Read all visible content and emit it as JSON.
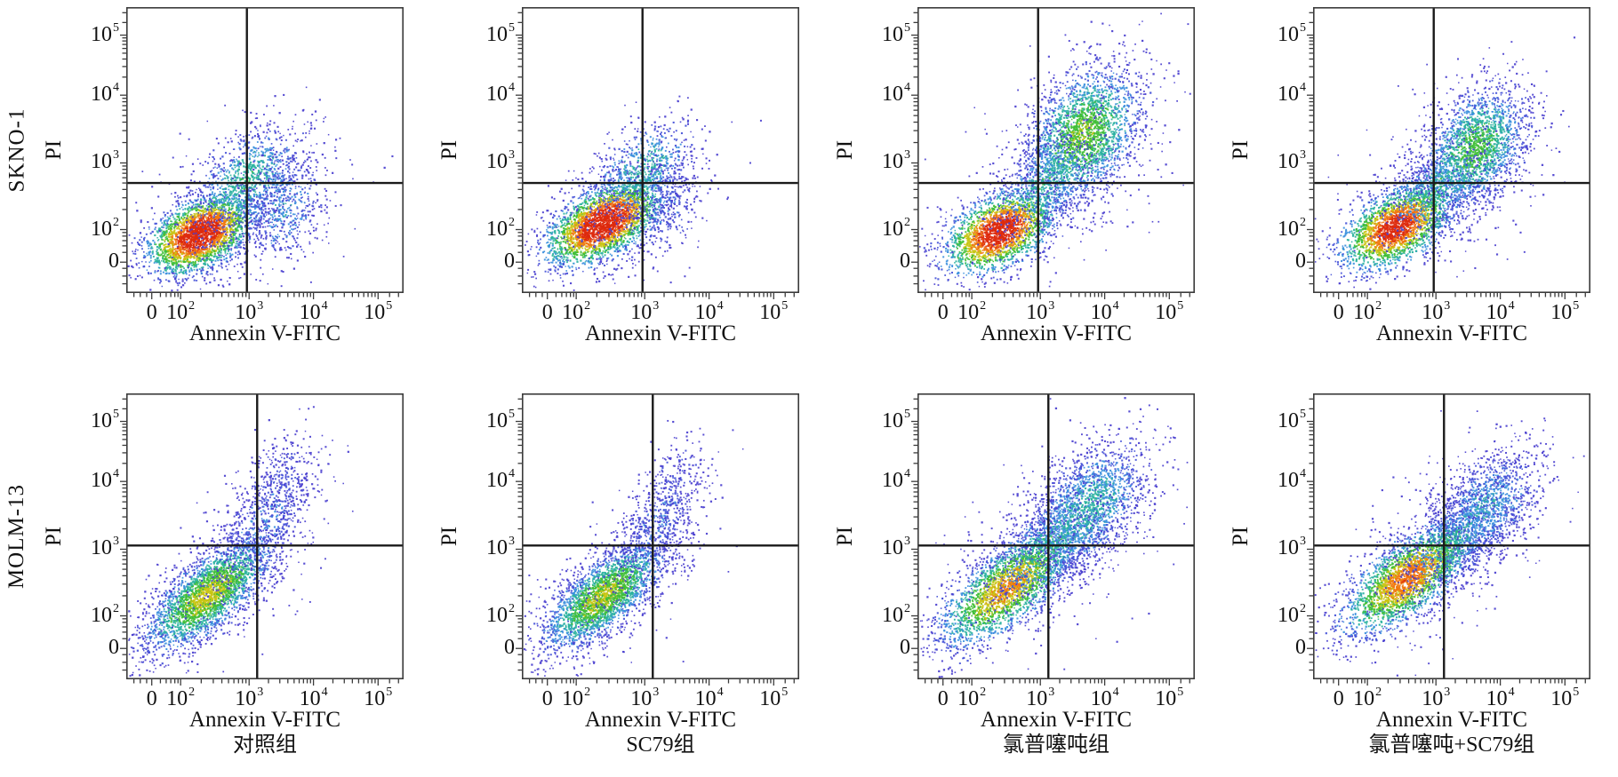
{
  "figure": {
    "kind": "flow cytometry apoptosis density dot plots",
    "background_color": "#ffffff",
    "axis_color": "#3b3b3b",
    "gate_line_color": "#1a1a1a",
    "text_color": "#111111"
  },
  "chart_data": {
    "type": "scatter",
    "description": "Annexin V-FITC / PI flow cytometry density plots, 2 cell lines x 4 treatment groups, with quadrant gates",
    "grid": "off",
    "legend": "none",
    "point_size": 1.7,
    "x_axis": {
      "label": "Annexin V-FITC",
      "scale": "biexponential-log",
      "ticks": [
        {
          "label": "0",
          "u": 0.092
        },
        {
          "label": "10^2",
          "u": 0.196
        },
        {
          "label": "10^3",
          "u": 0.443
        },
        {
          "label": "10^4",
          "u": 0.675
        },
        {
          "label": "10^5",
          "u": 0.908
        }
      ]
    },
    "y_axis": {
      "label": "PI",
      "scale": "biexponential-log",
      "ticks": [
        {
          "label": "0",
          "u": 0.108
        },
        {
          "label": "10^2",
          "u": 0.222
        },
        {
          "label": "10^3",
          "u": 0.455
        },
        {
          "label": "10^4",
          "u": 0.692
        },
        {
          "label": "10^5",
          "u": 0.902
        }
      ]
    },
    "columns": [
      "对照组",
      "SC79组",
      "氯普噻吨组",
      "氯普噻吨+SC79组"
    ],
    "density_colormap": [
      {
        "min_level": 0.8,
        "color": "#dd2a0d"
      },
      {
        "min_level": 0.68,
        "color": "#f0780f"
      },
      {
        "min_level": 0.56,
        "color": "#c9c414"
      },
      {
        "min_level": 0.44,
        "color": "#3fbe36"
      },
      {
        "min_level": 0.32,
        "color": "#2bb2a0"
      },
      {
        "min_level": 0.22,
        "color": "#3b8fdd"
      },
      {
        "min_level": 0.13,
        "color": "#4553d8"
      },
      {
        "min_level": -9,
        "color": "#4a3fcf"
      }
    ],
    "rows": [
      {
        "cell_line": "SKNO-1",
        "show_column_labels": false,
        "gate": {
          "x_u": 0.435,
          "y_u": 0.385,
          "x_value_approx": "9e2",
          "y_value_approx": "5e2"
        },
        "panels": [
          {
            "group_index": 0,
            "seed": 11,
            "clusters": [
              {
                "cx": 0.265,
                "cy": 0.205,
                "sx": 0.095,
                "sy": 0.07,
                "rho": 0.45,
                "n": 2700,
                "peak": 1.0
              },
              {
                "cx": 0.435,
                "cy": 0.395,
                "sx": 0.1,
                "sy": 0.095,
                "rho": 0.45,
                "n": 1000,
                "peak": 0.4
              },
              {
                "cx": 0.565,
                "cy": 0.295,
                "sx": 0.075,
                "sy": 0.1,
                "rho": 0.2,
                "n": 520,
                "peak": 0.28
              },
              {
                "cx": 0.4,
                "cy": 0.3,
                "sx": 0.17,
                "sy": 0.16,
                "rho": 0.4,
                "n": 330,
                "peak": 0.14
              }
            ]
          },
          {
            "group_index": 1,
            "seed": 22,
            "clusters": [
              {
                "cx": 0.295,
                "cy": 0.245,
                "sx": 0.105,
                "sy": 0.075,
                "rho": 0.55,
                "n": 2900,
                "peak": 1.0
              },
              {
                "cx": 0.435,
                "cy": 0.425,
                "sx": 0.095,
                "sy": 0.095,
                "rho": 0.5,
                "n": 750,
                "peak": 0.38
              },
              {
                "cx": 0.52,
                "cy": 0.305,
                "sx": 0.07,
                "sy": 0.09,
                "rho": 0.2,
                "n": 260,
                "peak": 0.2
              },
              {
                "cx": 0.35,
                "cy": 0.3,
                "sx": 0.16,
                "sy": 0.15,
                "rho": 0.5,
                "n": 280,
                "peak": 0.14
              }
            ]
          },
          {
            "group_index": 2,
            "seed": 33,
            "clusters": [
              {
                "cx": 0.295,
                "cy": 0.215,
                "sx": 0.1,
                "sy": 0.075,
                "rho": 0.45,
                "n": 2300,
                "peak": 0.95
              },
              {
                "cx": 0.6,
                "cy": 0.555,
                "sx": 0.105,
                "sy": 0.12,
                "rho": 0.35,
                "n": 2400,
                "peak": 0.55
              },
              {
                "cx": 0.46,
                "cy": 0.38,
                "sx": 0.09,
                "sy": 0.09,
                "rho": 0.5,
                "n": 650,
                "peak": 0.4
              },
              {
                "cx": 0.5,
                "cy": 0.43,
                "sx": 0.2,
                "sy": 0.2,
                "rho": 0.45,
                "n": 420,
                "peak": 0.12
              }
            ]
          },
          {
            "group_index": 3,
            "seed": 44,
            "clusters": [
              {
                "cx": 0.3,
                "cy": 0.23,
                "sx": 0.1,
                "sy": 0.075,
                "rho": 0.5,
                "n": 2350,
                "peak": 0.92
              },
              {
                "cx": 0.585,
                "cy": 0.505,
                "sx": 0.095,
                "sy": 0.105,
                "rho": 0.35,
                "n": 2050,
                "peak": 0.5
              },
              {
                "cx": 0.45,
                "cy": 0.36,
                "sx": 0.09,
                "sy": 0.08,
                "rho": 0.5,
                "n": 580,
                "peak": 0.42
              },
              {
                "cx": 0.48,
                "cy": 0.41,
                "sx": 0.19,
                "sy": 0.18,
                "rho": 0.45,
                "n": 360,
                "peak": 0.12
              }
            ]
          }
        ]
      },
      {
        "cell_line": "MOLM-13",
        "show_column_labels": true,
        "gate": {
          "x_u": 0.472,
          "y_u": 0.468,
          "x_value_approx": "1.3e3",
          "y_value_approx": "1.1e3"
        },
        "panels": [
          {
            "group_index": 0,
            "seed": 55,
            "clusters": [
              {
                "cx": 0.295,
                "cy": 0.295,
                "sx": 0.115,
                "sy": 0.1,
                "rho": 0.72,
                "n": 2850,
                "peak": 0.62
              },
              {
                "cx": 0.5,
                "cy": 0.555,
                "sx": 0.09,
                "sy": 0.11,
                "rho": 0.6,
                "n": 560,
                "peak": 0.24
              },
              {
                "cx": 0.555,
                "cy": 0.7,
                "sx": 0.07,
                "sy": 0.09,
                "rho": 0.4,
                "n": 260,
                "peak": 0.16
              },
              {
                "cx": 0.36,
                "cy": 0.36,
                "sx": 0.17,
                "sy": 0.17,
                "rho": 0.6,
                "n": 300,
                "peak": 0.11
              }
            ]
          },
          {
            "group_index": 1,
            "seed": 66,
            "clusters": [
              {
                "cx": 0.295,
                "cy": 0.29,
                "sx": 0.11,
                "sy": 0.095,
                "rho": 0.7,
                "n": 2750,
                "peak": 0.6
              },
              {
                "cx": 0.49,
                "cy": 0.55,
                "sx": 0.085,
                "sy": 0.1,
                "rho": 0.6,
                "n": 480,
                "peak": 0.21
              },
              {
                "cx": 0.555,
                "cy": 0.7,
                "sx": 0.06,
                "sy": 0.085,
                "rho": 0.4,
                "n": 170,
                "peak": 0.14
              },
              {
                "cx": 0.35,
                "cy": 0.35,
                "sx": 0.16,
                "sy": 0.16,
                "rho": 0.6,
                "n": 280,
                "peak": 0.11
              }
            ]
          },
          {
            "group_index": 2,
            "seed": 77,
            "clusters": [
              {
                "cx": 0.325,
                "cy": 0.32,
                "sx": 0.125,
                "sy": 0.105,
                "rho": 0.7,
                "n": 2600,
                "peak": 0.72
              },
              {
                "cx": 0.615,
                "cy": 0.6,
                "sx": 0.11,
                "sy": 0.115,
                "rho": 0.5,
                "n": 1850,
                "peak": 0.38
              },
              {
                "cx": 0.47,
                "cy": 0.46,
                "sx": 0.1,
                "sy": 0.1,
                "rho": 0.6,
                "n": 650,
                "peak": 0.42
              },
              {
                "cx": 0.47,
                "cy": 0.47,
                "sx": 0.2,
                "sy": 0.2,
                "rho": 0.55,
                "n": 420,
                "peak": 0.11
              }
            ]
          },
          {
            "group_index": 3,
            "seed": 88,
            "clusters": [
              {
                "cx": 0.345,
                "cy": 0.355,
                "sx": 0.12,
                "sy": 0.1,
                "rho": 0.68,
                "n": 2700,
                "peak": 0.78
              },
              {
                "cx": 0.625,
                "cy": 0.6,
                "sx": 0.1,
                "sy": 0.105,
                "rho": 0.45,
                "n": 1350,
                "peak": 0.31
              },
              {
                "cx": 0.49,
                "cy": 0.47,
                "sx": 0.09,
                "sy": 0.09,
                "rho": 0.6,
                "n": 560,
                "peak": 0.42
              },
              {
                "cx": 0.48,
                "cy": 0.47,
                "sx": 0.19,
                "sy": 0.18,
                "rho": 0.55,
                "n": 340,
                "peak": 0.11
              }
            ]
          }
        ]
      }
    ]
  }
}
